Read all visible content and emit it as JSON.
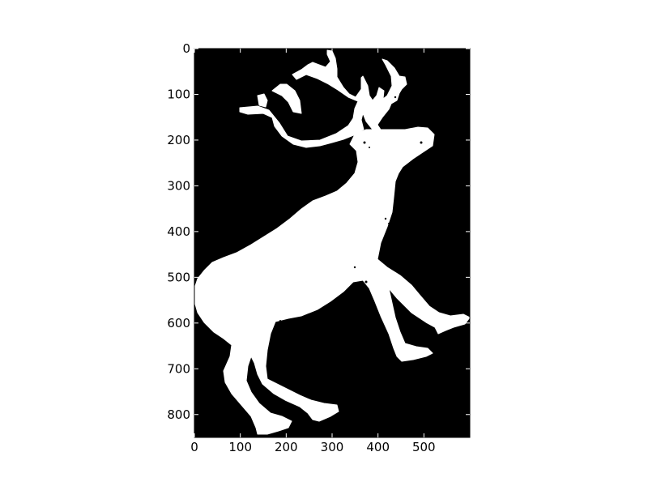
{
  "image": {
    "description_colors": {
      "background": "#000000",
      "foreground": "#ffffff",
      "frame": "#000000"
    },
    "x_ticks": [
      "0",
      "100",
      "200",
      "300",
      "400",
      "500"
    ],
    "y_ticks": [
      "0",
      "100",
      "200",
      "300",
      "400",
      "500",
      "600",
      "700",
      "800"
    ],
    "x_range": [
      0,
      600
    ],
    "y_range": [
      0,
      850
    ],
    "y_inverted": true,
    "content": "reindeer-silhouette"
  }
}
